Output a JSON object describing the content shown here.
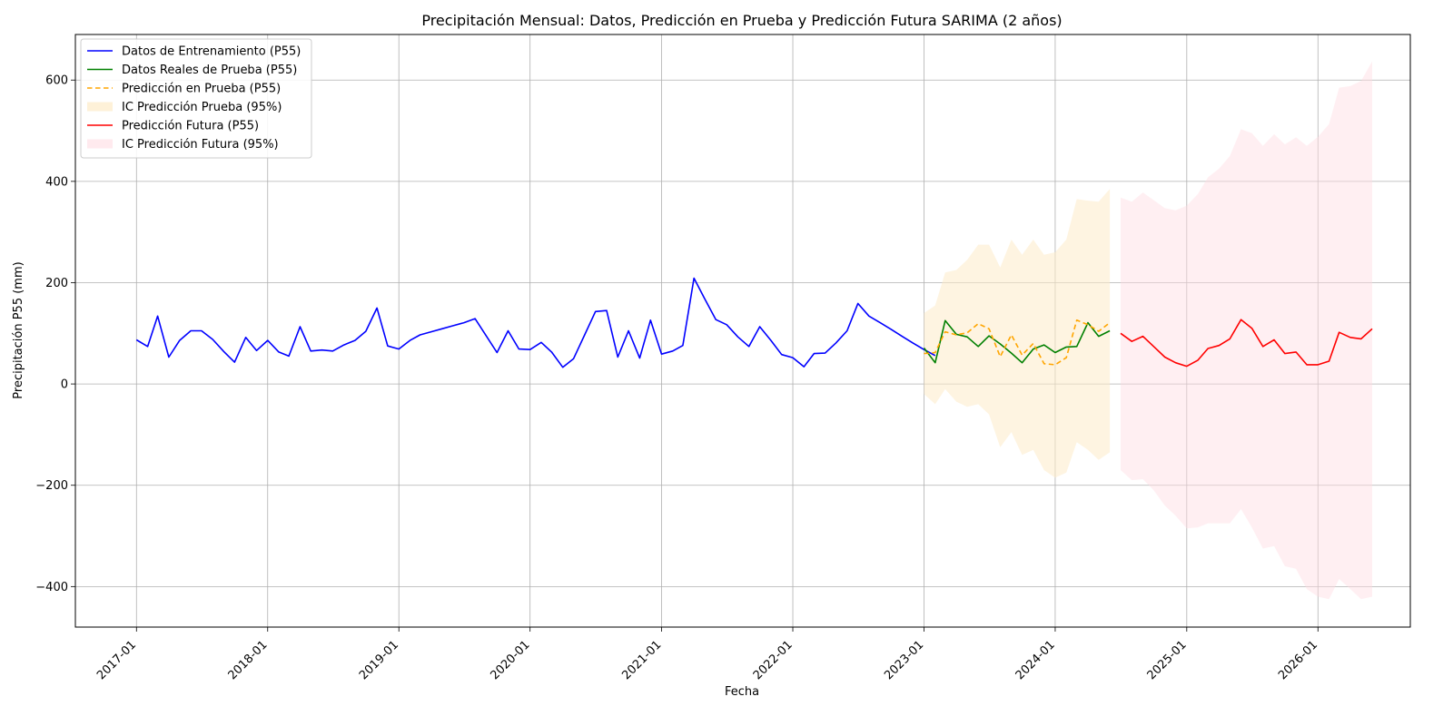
{
  "chart_data": {
    "type": "line",
    "title": "Precipitación Mensual: Datos, Predicción en Prueba y Predicción Futura SARIMA (2 años)",
    "xlabel": "Fecha",
    "ylabel": "Precipitación P55 (mm)",
    "xlim": [
      "2016-07-15",
      "2026-09-15"
    ],
    "ylim": [
      -480,
      690
    ],
    "x_ticks": [
      "2017-01",
      "2018-01",
      "2019-01",
      "2020-01",
      "2021-01",
      "2022-01",
      "2023-01",
      "2024-01",
      "2025-01",
      "2026-01"
    ],
    "y_ticks": [
      -400,
      -200,
      0,
      200,
      400,
      600
    ],
    "y_tick_labels": [
      "−400",
      "−200",
      "0",
      "200",
      "400",
      "600"
    ],
    "grid": true,
    "legend_position": "top-left",
    "series": [
      {
        "name": "Datos de Entrenamiento (P55)",
        "kind": "line",
        "color": "#0000ff",
        "dash": "solid",
        "start": "2017-01",
        "values": [
          87,
          74,
          134,
          53,
          86,
          105,
          105,
          88,
          64,
          43,
          92,
          66,
          86,
          63,
          55,
          113,
          65,
          67,
          65,
          77,
          86,
          104,
          150,
          75,
          69,
          86,
          97,
          103,
          109,
          115,
          121,
          129,
          95,
          62,
          105,
          69,
          68,
          82,
          63,
          33,
          50,
          97,
          143,
          145,
          53,
          105,
          51,
          126,
          59,
          65,
          76,
          209,
          168,
          127,
          117,
          93,
          74,
          113,
          86,
          58,
          52,
          34,
          60,
          61,
          81,
          105,
          159,
          134,
          121,
          108,
          94,
          81,
          68,
          56
        ]
      },
      {
        "name": "Datos Reales de Prueba (P55)",
        "kind": "line",
        "color": "#008000",
        "dash": "solid",
        "start": "2023-01",
        "values": [
          71,
          42,
          125,
          98,
          93,
          74,
          95,
          79,
          61,
          42,
          69,
          77,
          62,
          73,
          74,
          121,
          94,
          105
        ]
      },
      {
        "name": "Predicción en Prueba (P55)",
        "kind": "line",
        "color": "#ffa500",
        "dash": "dashed",
        "start": "2023-01",
        "values": [
          60,
          62,
          103,
          97,
          101,
          119,
          109,
          54,
          97,
          57,
          80,
          40,
          38,
          52,
          126,
          117,
          104,
          121
        ]
      },
      {
        "name": "IC Predicción Prueba (95%)",
        "kind": "band",
        "color": "#fdebc8",
        "opacity": 0.55,
        "start": "2023-01",
        "upper": [
          140,
          155,
          220,
          225,
          245,
          275,
          275,
          230,
          285,
          255,
          285,
          255,
          260,
          285,
          365,
          362,
          360,
          385
        ],
        "lower": [
          -20,
          -40,
          -10,
          -35,
          -45,
          -40,
          -60,
          -125,
          -95,
          -140,
          -130,
          -170,
          -185,
          -175,
          -115,
          -130,
          -150,
          -135
        ]
      },
      {
        "name": "Predicción Futura (P55)",
        "kind": "line",
        "color": "#ff0000",
        "dash": "solid",
        "start": "2024-07",
        "values": [
          100,
          84,
          94,
          74,
          53,
          42,
          35,
          47,
          70,
          76,
          89,
          127,
          110,
          74,
          87,
          60,
          63,
          38,
          38,
          45,
          102,
          92,
          89,
          109
        ]
      },
      {
        "name": "IC Predicción Futura (95%)",
        "kind": "band",
        "color": "#ffdce3",
        "opacity": 0.45,
        "start": "2024-07",
        "upper": [
          368,
          360,
          378,
          363,
          347,
          343,
          352,
          375,
          408,
          425,
          450,
          503,
          495,
          470,
          493,
          473,
          487,
          470,
          488,
          513,
          585,
          588,
          598,
          637
        ],
        "lower": [
          -170,
          -190,
          -188,
          -210,
          -240,
          -260,
          -285,
          -283,
          -275,
          -275,
          -275,
          -247,
          -283,
          -325,
          -320,
          -360,
          -365,
          -405,
          -420,
          -425,
          -385,
          -405,
          -425,
          -420
        ]
      }
    ]
  }
}
